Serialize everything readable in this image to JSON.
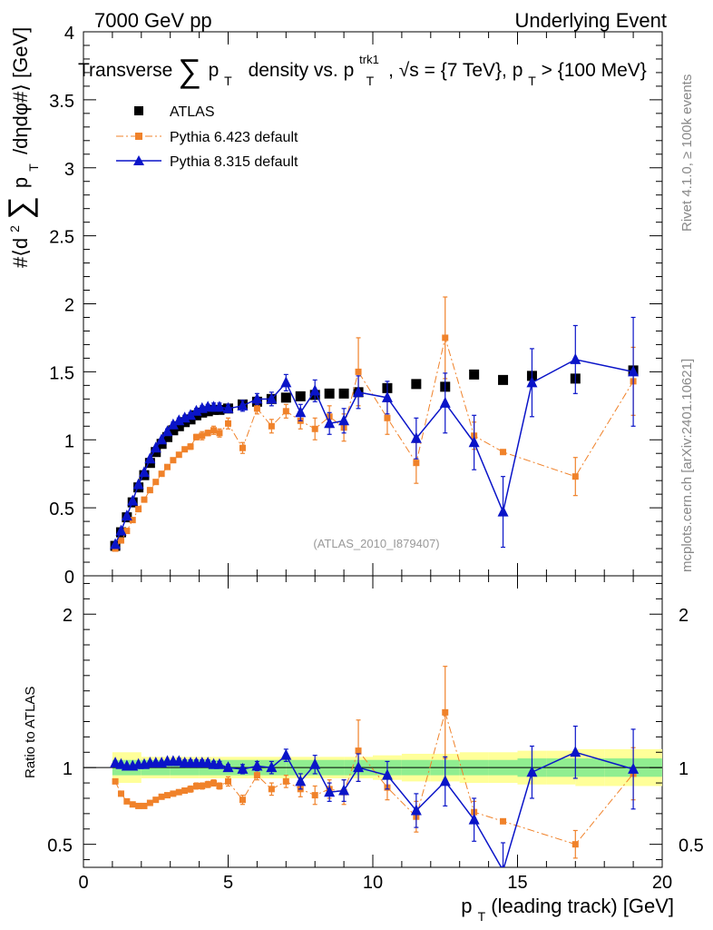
{
  "header": {
    "left": "7000 GeV pp",
    "right": "Underlying Event"
  },
  "side_labels": {
    "top": "Rivet 4.1.0, ≥ 100k events",
    "bottom": "mcplots.cern.ch [arXiv:2401.10621]"
  },
  "watermark": "(ATLAS_2010_I879407)",
  "colors": {
    "atlas": "#000000",
    "py6": "#f0822a",
    "py8": "#0a14c8",
    "band_stat": "#90ee90",
    "band_tot": "#ffff99"
  },
  "chart_data": [
    {
      "type": "scatter",
      "title": "Transverse Σ pT density vs. pT trk1, √s = {7 TeV}, pT > {100 MeV}",
      "title_parts": {
        "a": "Transverse",
        "b": "p",
        "c": "T",
        "d": "density vs. p",
        "e": "trk1",
        "f": "T",
        "g": ", √s = {7 TeV}, p",
        "h": "T",
        "i": " > {100 MeV}"
      },
      "ylabel_parts": {
        "a": "#⟨d",
        "b": "2",
        "c": "∑",
        "d": "p",
        "e": "T",
        "f": "/dηdφ#⟩ [GeV]"
      },
      "xlim": [
        0,
        20
      ],
      "ylim": [
        0,
        4
      ],
      "yticks": [
        0,
        0.5,
        1,
        1.5,
        2,
        2.5,
        3,
        3.5,
        4
      ],
      "ytick_labels": [
        "0",
        "0.5",
        "1",
        "1.5",
        "2",
        "2.5",
        "3",
        "3.5",
        "4"
      ],
      "legend": {
        "position": "top-left",
        "entries": [
          "ATLAS",
          "Pythia 6.423 default",
          "Pythia 8.315 default"
        ]
      },
      "series": [
        {
          "name": "ATLAS",
          "marker": "square",
          "x": [
            1.1,
            1.3,
            1.5,
            1.7,
            1.9,
            2.1,
            2.3,
            2.5,
            2.7,
            2.9,
            3.1,
            3.3,
            3.5,
            3.7,
            3.9,
            4.1,
            4.3,
            4.5,
            4.7,
            5.0,
            5.5,
            6.0,
            6.5,
            7.0,
            7.5,
            8.0,
            8.5,
            9.0,
            9.5,
            10.5,
            11.5,
            12.5,
            13.5,
            14.5,
            15.5,
            17.0,
            19.0
          ],
          "y": [
            0.22,
            0.32,
            0.43,
            0.54,
            0.65,
            0.74,
            0.83,
            0.91,
            0.97,
            1.02,
            1.07,
            1.1,
            1.13,
            1.15,
            1.18,
            1.2,
            1.21,
            1.22,
            1.22,
            1.23,
            1.26,
            1.28,
            1.3,
            1.31,
            1.32,
            1.33,
            1.34,
            1.34,
            1.35,
            1.38,
            1.41,
            1.39,
            1.48,
            1.44,
            1.47,
            1.45,
            1.51
          ]
        },
        {
          "name": "Pythia 6.423 default",
          "marker": "small-square",
          "line": "dash-dot",
          "x": [
            1.1,
            1.3,
            1.5,
            1.7,
            1.9,
            2.1,
            2.3,
            2.5,
            2.7,
            2.9,
            3.1,
            3.3,
            3.5,
            3.7,
            3.9,
            4.1,
            4.3,
            4.5,
            4.7,
            5.0,
            5.5,
            6.0,
            6.5,
            7.0,
            7.5,
            8.0,
            8.5,
            9.0,
            9.5,
            10.5,
            11.5,
            12.5,
            13.5,
            14.5,
            17.0,
            19.0
          ],
          "y": [
            0.2,
            0.26,
            0.33,
            0.41,
            0.49,
            0.56,
            0.63,
            0.69,
            0.75,
            0.8,
            0.85,
            0.89,
            0.93,
            0.95,
            1.02,
            1.03,
            1.05,
            1.07,
            1.05,
            1.12,
            0.94,
            1.23,
            1.1,
            1.21,
            1.14,
            1.08,
            1.17,
            1.09,
            1.5,
            1.16,
            0.83,
            1.75,
            1.03,
            0.91,
            0.73,
            1.43
          ],
          "err": [
            0.01,
            0.01,
            0.01,
            0.01,
            0.01,
            0.01,
            0.01,
            0.01,
            0.01,
            0.01,
            0.01,
            0.01,
            0.01,
            0.02,
            0.02,
            0.03,
            0.02,
            0.03,
            0.03,
            0.04,
            0.04,
            0.04,
            0.05,
            0.05,
            0.06,
            0.08,
            0.08,
            0.1,
            0.25,
            0.12,
            0.15,
            0.3,
            0.1,
            0.0,
            0.14,
            0.25
          ]
        },
        {
          "name": "Pythia 8.315 default",
          "marker": "triangle",
          "line": "solid",
          "x": [
            1.1,
            1.3,
            1.5,
            1.7,
            1.9,
            2.1,
            2.3,
            2.5,
            2.7,
            2.9,
            3.1,
            3.3,
            3.5,
            3.7,
            3.9,
            4.1,
            4.3,
            4.5,
            4.7,
            5.0,
            5.5,
            6.0,
            6.5,
            7.0,
            7.5,
            8.0,
            8.5,
            9.0,
            9.5,
            10.5,
            11.5,
            12.5,
            13.5,
            14.5,
            15.5,
            17.0,
            19.0
          ],
          "y": [
            0.23,
            0.33,
            0.44,
            0.55,
            0.67,
            0.76,
            0.86,
            0.94,
            1.0,
            1.06,
            1.11,
            1.14,
            1.16,
            1.18,
            1.21,
            1.23,
            1.24,
            1.24,
            1.24,
            1.23,
            1.25,
            1.3,
            1.3,
            1.42,
            1.2,
            1.36,
            1.12,
            1.14,
            1.35,
            1.31,
            1.01,
            1.27,
            0.98,
            0.47,
            1.42,
            1.59,
            1.5
          ],
          "err": [
            0.01,
            0.01,
            0.01,
            0.01,
            0.01,
            0.01,
            0.01,
            0.01,
            0.01,
            0.02,
            0.02,
            0.02,
            0.02,
            0.02,
            0.02,
            0.02,
            0.02,
            0.03,
            0.03,
            0.03,
            0.04,
            0.04,
            0.05,
            0.06,
            0.06,
            0.08,
            0.08,
            0.09,
            0.12,
            0.12,
            0.15,
            0.22,
            0.2,
            0.26,
            0.25,
            0.25,
            0.4
          ]
        }
      ]
    },
    {
      "type": "scatter",
      "ylabel": "Ratio to ATLAS",
      "xlabel_parts": {
        "a": "p",
        "b": "T",
        "c": " (leading track) [GeV]"
      },
      "xlim": [
        0,
        20
      ],
      "ylim": [
        0.35,
        2.25
      ],
      "xticks": [
        0,
        5,
        10,
        15,
        20
      ],
      "xtick_labels": [
        "0",
        "5",
        "10",
        "15",
        "20"
      ],
      "yticks": [
        0.5,
        1,
        2
      ],
      "ytick_labels": [
        "0.5",
        "1",
        "2"
      ],
      "band": {
        "x": [
          1.0,
          2.0,
          3.0,
          4.0,
          5.0,
          6.0,
          7.0,
          8.0,
          9.0,
          10.0,
          11.0,
          12.0,
          13.0,
          14.0,
          15.0,
          16.0,
          17.0,
          18.0,
          20.0
        ],
        "stat": [
          0.05,
          0.05,
          0.05,
          0.05,
          0.05,
          0.05,
          0.05,
          0.05,
          0.05,
          0.05,
          0.05,
          0.05,
          0.05,
          0.05,
          0.06,
          0.06,
          0.06,
          0.06,
          0.06
        ],
        "total": [
          0.1,
          0.07,
          0.07,
          0.07,
          0.07,
          0.07,
          0.07,
          0.07,
          0.07,
          0.08,
          0.09,
          0.09,
          0.1,
          0.1,
          0.11,
          0.11,
          0.12,
          0.12,
          0.12
        ]
      },
      "series": [
        {
          "name": "Pythia 6.423 default",
          "x": [
            1.1,
            1.3,
            1.5,
            1.7,
            1.9,
            2.1,
            2.3,
            2.5,
            2.7,
            2.9,
            3.1,
            3.3,
            3.5,
            3.7,
            3.9,
            4.1,
            4.3,
            4.5,
            4.7,
            5.0,
            5.5,
            6.0,
            6.5,
            7.0,
            7.5,
            8.0,
            8.5,
            9.0,
            9.5,
            10.5,
            11.5,
            12.5,
            13.5,
            14.5,
            17.0,
            19.0
          ],
          "y": [
            0.91,
            0.83,
            0.78,
            0.76,
            0.75,
            0.75,
            0.77,
            0.79,
            0.81,
            0.82,
            0.83,
            0.84,
            0.85,
            0.86,
            0.88,
            0.88,
            0.89,
            0.9,
            0.88,
            0.91,
            0.79,
            0.95,
            0.86,
            0.91,
            0.86,
            0.82,
            0.86,
            0.84,
            1.11,
            0.87,
            0.68,
            1.36,
            0.71,
            0.65,
            0.5,
            0.96
          ],
          "err": [
            0.01,
            0.01,
            0.01,
            0.01,
            0.01,
            0.01,
            0.01,
            0.01,
            0.01,
            0.01,
            0.01,
            0.01,
            0.01,
            0.02,
            0.02,
            0.02,
            0.02,
            0.02,
            0.02,
            0.03,
            0.03,
            0.03,
            0.04,
            0.04,
            0.05,
            0.06,
            0.06,
            0.08,
            0.2,
            0.08,
            0.1,
            0.3,
            0.07,
            0.0,
            0.09,
            0.17
          ]
        },
        {
          "name": "Pythia 8.315 default",
          "x": [
            1.1,
            1.3,
            1.5,
            1.7,
            1.9,
            2.1,
            2.3,
            2.5,
            2.7,
            2.9,
            3.1,
            3.3,
            3.5,
            3.7,
            3.9,
            4.1,
            4.3,
            4.5,
            4.7,
            5.0,
            5.5,
            6.0,
            6.5,
            7.0,
            7.5,
            8.0,
            8.5,
            9.0,
            9.5,
            10.5,
            11.5,
            12.5,
            13.5,
            14.5,
            15.5,
            17.0,
            19.0
          ],
          "y": [
            1.03,
            1.02,
            1.01,
            1.01,
            1.02,
            1.02,
            1.03,
            1.03,
            1.03,
            1.04,
            1.04,
            1.04,
            1.03,
            1.03,
            1.03,
            1.03,
            1.03,
            1.02,
            1.02,
            1.0,
            0.99,
            1.01,
            1.0,
            1.08,
            0.91,
            1.02,
            0.84,
            0.85,
            1.0,
            0.95,
            0.72,
            0.91,
            0.66,
            0.33,
            0.97,
            1.1,
            0.99
          ],
          "err": [
            0.01,
            0.01,
            0.01,
            0.01,
            0.01,
            0.01,
            0.01,
            0.01,
            0.01,
            0.01,
            0.01,
            0.02,
            0.02,
            0.02,
            0.02,
            0.02,
            0.02,
            0.02,
            0.02,
            0.02,
            0.03,
            0.03,
            0.04,
            0.04,
            0.05,
            0.06,
            0.06,
            0.07,
            0.09,
            0.09,
            0.11,
            0.16,
            0.14,
            0.18,
            0.17,
            0.17,
            0.26
          ]
        }
      ]
    }
  ]
}
